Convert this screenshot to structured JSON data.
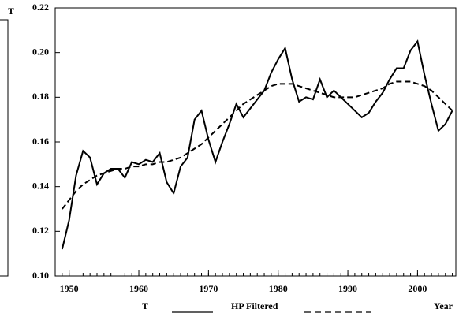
{
  "chart_data": {
    "type": "line",
    "y_label": "T",
    "x_label": "Year",
    "x": [
      1949,
      1950,
      1951,
      1952,
      1953,
      1954,
      1955,
      1956,
      1957,
      1958,
      1959,
      1960,
      1961,
      1962,
      1963,
      1964,
      1965,
      1966,
      1967,
      1968,
      1969,
      1970,
      1971,
      1972,
      1973,
      1974,
      1975,
      1976,
      1977,
      1978,
      1979,
      1980,
      1981,
      1982,
      1983,
      1984,
      1985,
      1986,
      1987,
      1988,
      1989,
      1990,
      1991,
      1992,
      1993,
      1994,
      1995,
      1996,
      1997,
      1998,
      1999,
      2000,
      2001,
      2002,
      2003,
      2004,
      2005
    ],
    "series": [
      {
        "name": "T",
        "color": "#000000",
        "dash": "solid",
        "values": [
          0.112,
          0.125,
          0.145,
          0.156,
          0.153,
          0.141,
          0.146,
          0.148,
          0.148,
          0.144,
          0.151,
          0.15,
          0.152,
          0.151,
          0.155,
          0.142,
          0.137,
          0.149,
          0.153,
          0.17,
          0.174,
          0.161,
          0.151,
          0.16,
          0.168,
          0.177,
          0.171,
          0.175,
          0.179,
          0.183,
          0.191,
          0.197,
          0.202,
          0.188,
          0.178,
          0.18,
          0.179,
          0.188,
          0.18,
          0.183,
          0.18,
          0.177,
          0.174,
          0.171,
          0.173,
          0.178,
          0.182,
          0.188,
          0.193,
          0.193,
          0.201,
          0.205,
          0.19,
          0.177,
          0.165,
          0.168,
          0.174
        ]
      },
      {
        "name": "HP Filtered",
        "color": "#000000",
        "dash": "dashed",
        "values": [
          0.13,
          0.134,
          0.138,
          0.141,
          0.143,
          0.145,
          0.146,
          0.147,
          0.148,
          0.148,
          0.149,
          0.149,
          0.15,
          0.15,
          0.151,
          0.151,
          0.152,
          0.153,
          0.155,
          0.157,
          0.159,
          0.162,
          0.165,
          0.168,
          0.171,
          0.174,
          0.177,
          0.179,
          0.181,
          0.183,
          0.185,
          0.186,
          0.186,
          0.186,
          0.185,
          0.184,
          0.183,
          0.182,
          0.181,
          0.18,
          0.18,
          0.18,
          0.18,
          0.181,
          0.182,
          0.183,
          0.184,
          0.186,
          0.187,
          0.187,
          0.187,
          0.186,
          0.185,
          0.183,
          0.18,
          0.177,
          0.174
        ]
      }
    ],
    "xlim": [
      1948,
      2005.5
    ],
    "xticks": [
      1950,
      1960,
      1970,
      1980,
      1990,
      2000
    ],
    "ylim": [
      0.1,
      0.22
    ],
    "yticks": [
      {
        "value": 0.1,
        "label": "0.10"
      },
      0.12,
      0.14,
      0.16,
      0.18,
      {
        "value": 0.2,
        "label": "0.20"
      },
      0.22
    ],
    "grid": false
  }
}
